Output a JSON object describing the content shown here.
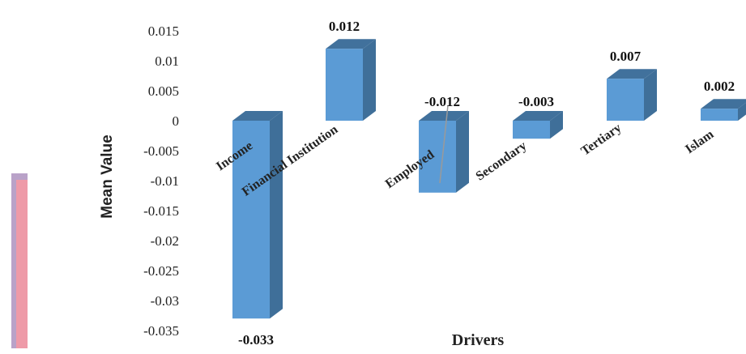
{
  "chart_data": {
    "type": "bar",
    "style": "3d-column",
    "categories": [
      "Income",
      "Financial Institution",
      "Employed",
      "Secondary",
      "Tertiary",
      "Islam"
    ],
    "series": [
      {
        "values": [
          -0.033,
          0.012,
          -0.012,
          -0.003,
          0.007,
          0.002
        ]
      }
    ],
    "data_labels": [
      "-0.033",
      "0.012",
      "-0.012",
      "-0.003",
      "0.007",
      "0.002"
    ],
    "title": "",
    "xlabel": "Drivers",
    "ylabel": "Mean  Value",
    "ylim": [
      -0.035,
      0.015
    ],
    "yticks": [
      "0.015",
      "0.01",
      "0.005",
      "0",
      "-0.005",
      "-0.01",
      "-0.015",
      "-0.02",
      "-0.025",
      "-0.03",
      "-0.035"
    ],
    "tick_values": [
      0.015,
      0.01,
      0.005,
      0,
      -0.005,
      -0.01,
      -0.015,
      -0.02,
      -0.025,
      -0.03,
      -0.035
    ],
    "grid": false,
    "legend": "none",
    "colors": {
      "front": "#5b9bd5",
      "side": "#3f6f99",
      "top": "#41719c"
    }
  }
}
